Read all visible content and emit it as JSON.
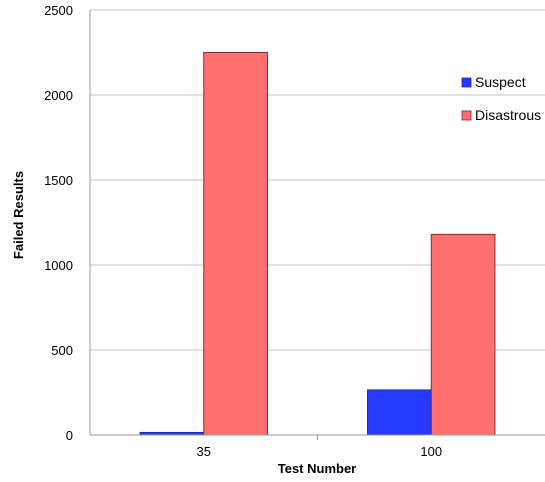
{
  "chart_data": {
    "type": "bar",
    "categories": [
      "35",
      "100"
    ],
    "series": [
      {
        "name": "Suspect",
        "values": [
          15,
          265
        ],
        "color": "#2639ff"
      },
      {
        "name": "Disastrous",
        "values": [
          2250,
          1180
        ],
        "color": "#ff6f6f"
      }
    ],
    "xlabel": "Test Number",
    "ylabel": "Failed Results",
    "ylim": [
      0,
      2500
    ],
    "yticks": [
      "0",
      "500",
      "1000",
      "1500",
      "2000",
      "2500"
    ],
    "grid": true,
    "legend_position": "right"
  }
}
